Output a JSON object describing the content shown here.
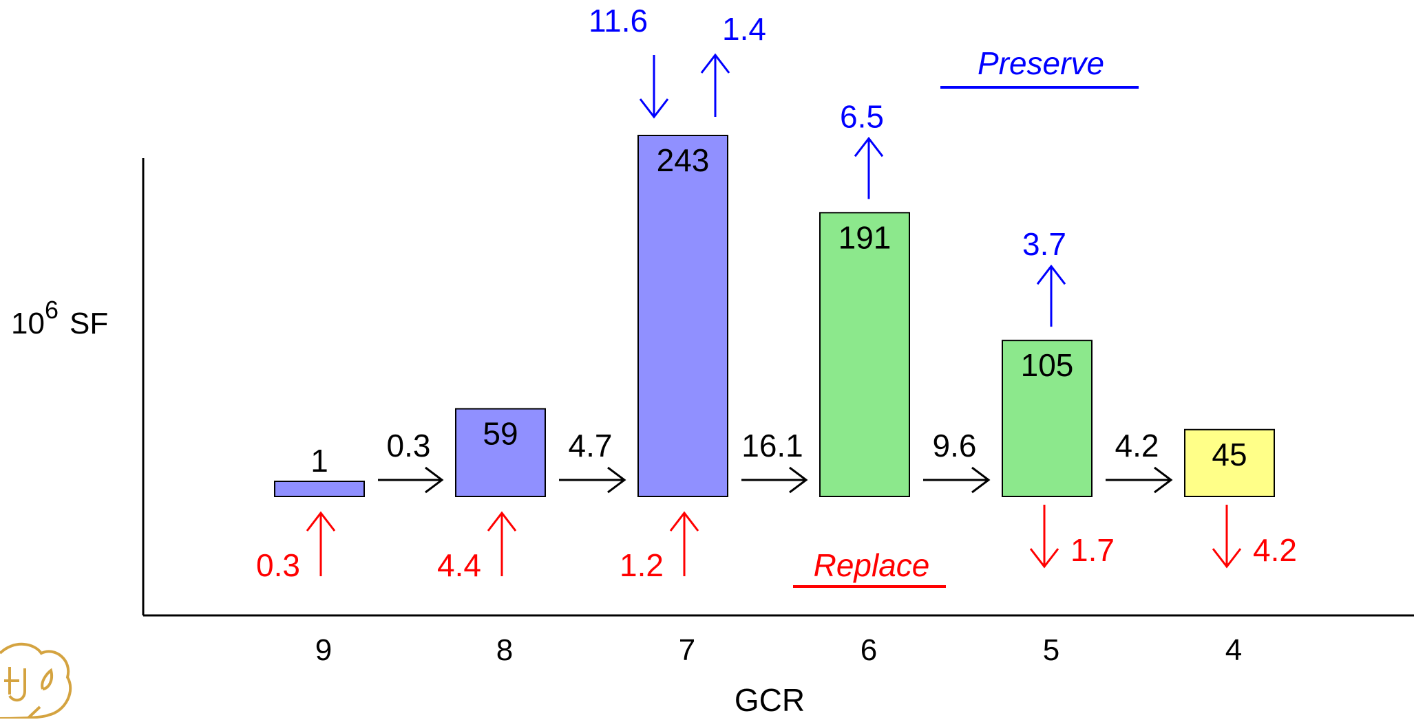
{
  "chart_data": {
    "type": "bar",
    "xlabel": "GCR",
    "ylabel": "SF",
    "ylabel_prefix": "10",
    "ylabel_exponent": "6",
    "categories": [
      "9",
      "8",
      "7",
      "6",
      "5",
      "4"
    ],
    "values": [
      1,
      59,
      243,
      191,
      105,
      45
    ],
    "value_labels": [
      "1",
      "59",
      "243",
      "191",
      "105",
      "45"
    ],
    "bar_colors": [
      "#9090ff",
      "#9090ff",
      "#9090ff",
      "#8ce88c",
      "#8ce88c",
      "#ffff88"
    ],
    "ylim": [
      0,
      270
    ],
    "grid": false,
    "flows_between": [
      {
        "from": "9",
        "to": "8",
        "value": "0.3"
      },
      {
        "from": "8",
        "to": "7",
        "value": "4.7"
      },
      {
        "from": "7",
        "to": "6",
        "value": "16.1"
      },
      {
        "from": "6",
        "to": "5",
        "value": "9.6"
      },
      {
        "from": "5",
        "to": "4",
        "value": "4.2"
      }
    ],
    "preserve": {
      "label": "Preserve",
      "color": "#0000ff",
      "arrows": [
        {
          "category": "7",
          "direction": "down",
          "value": "11.6"
        },
        {
          "category": "7",
          "direction": "up",
          "value": "1.4"
        },
        {
          "category": "6",
          "direction": "up",
          "value": "6.5"
        },
        {
          "category": "5",
          "direction": "up",
          "value": "3.7"
        }
      ]
    },
    "replace": {
      "label": "Replace",
      "color": "#ff0000",
      "arrows": [
        {
          "category": "9",
          "direction": "up",
          "value": "0.3"
        },
        {
          "category": "8",
          "direction": "up",
          "value": "4.4"
        },
        {
          "category": "7",
          "direction": "up",
          "value": "1.2"
        },
        {
          "category": "5",
          "direction": "down",
          "value": "1.7"
        },
        {
          "category": "4",
          "direction": "down",
          "value": "4.2"
        }
      ]
    }
  },
  "logo": {
    "name": "cu-logo",
    "color": "#d4a340"
  }
}
